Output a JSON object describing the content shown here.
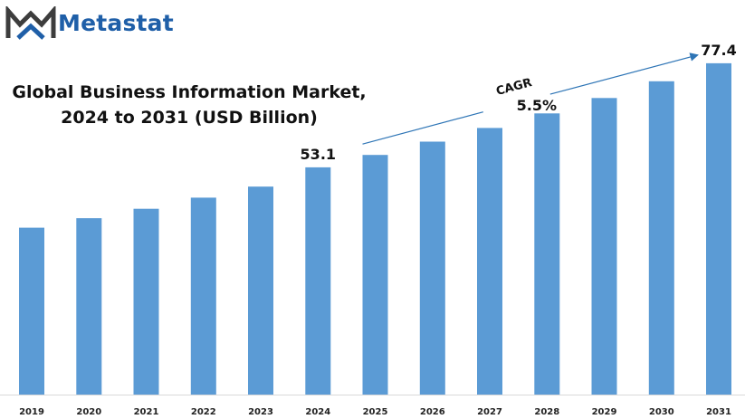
{
  "brand": {
    "name": "Metastat",
    "logo_icon": "metastat-logo-icon",
    "color": "#1f5fa8"
  },
  "chart_data": {
    "type": "bar",
    "title_line1": "Global Business Information Market,",
    "title_line2": "2024 to 2031 (USD Billion)",
    "categories": [
      "2019",
      "2020",
      "2021",
      "2022",
      "2023",
      "2024",
      "2025",
      "2026",
      "2027",
      "2028",
      "2029",
      "2030",
      "2031"
    ],
    "values": [
      39.0,
      41.2,
      43.4,
      46.0,
      48.6,
      53.1,
      56.0,
      59.1,
      62.3,
      65.7,
      69.3,
      73.2,
      77.4
    ],
    "data_labels": [
      {
        "category": "2024",
        "text": "53.1"
      },
      {
        "category": "2031",
        "text": "77.4"
      }
    ],
    "annotation": {
      "label": "CAGR",
      "value": "5.5%",
      "from_category": "2025",
      "to_category": "2030"
    },
    "bar_color": "#5b9bd5",
    "arrow_color": "#2e75b6",
    "ylim": [
      0,
      85
    ],
    "grid": false,
    "legend": "none"
  }
}
